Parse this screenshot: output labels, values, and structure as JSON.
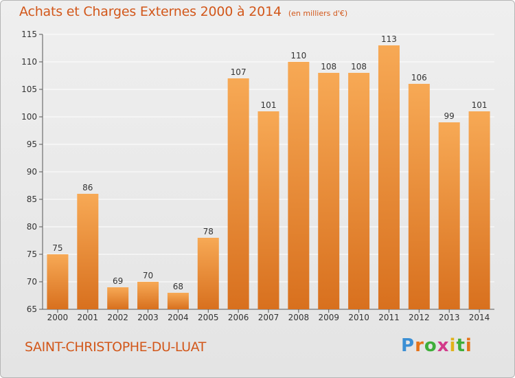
{
  "header": {
    "title": "Achats et Charges Externes 2000 à 2014",
    "unit": "(en milliers d'€)"
  },
  "footer": {
    "commune": "SAINT-CHRISTOPHE-DU-LUAT",
    "logo_text": "Proxiti"
  },
  "colors": {
    "accent": "#d2571a",
    "bar_top": "#f7a955",
    "bar_bottom": "#d8701e",
    "grid": "#ffffff"
  },
  "chart_data": {
    "type": "bar",
    "categories": [
      "2000",
      "2001",
      "2002",
      "2003",
      "2004",
      "2005",
      "2006",
      "2007",
      "2008",
      "2009",
      "2010",
      "2011",
      "2012",
      "2013",
      "2014"
    ],
    "values": [
      75,
      86,
      69,
      70,
      68,
      78,
      107,
      101,
      110,
      108,
      108,
      113,
      106,
      99,
      101
    ],
    "ylim": [
      65,
      115
    ],
    "yticks": [
      65,
      70,
      75,
      80,
      85,
      90,
      95,
      100,
      105,
      110,
      115
    ],
    "grid": true,
    "data_labels": true
  }
}
